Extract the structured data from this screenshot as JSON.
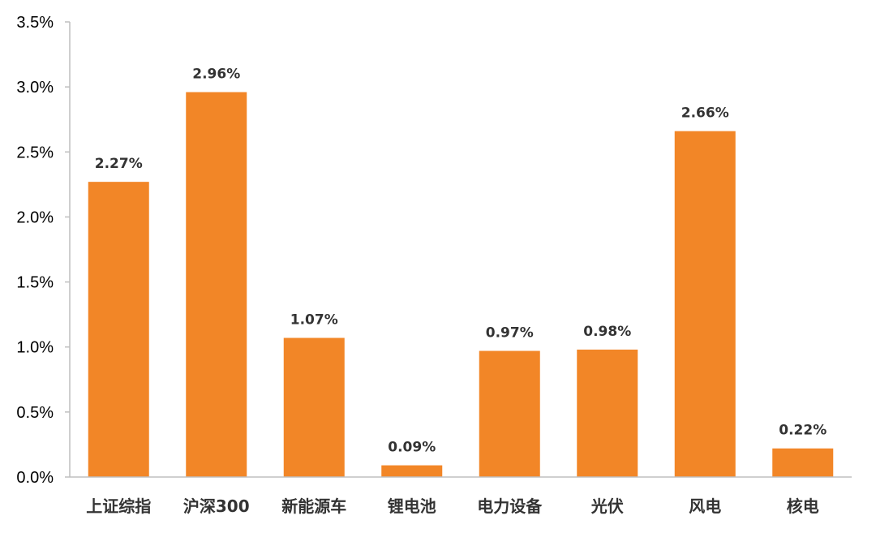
{
  "chart_data": {
    "type": "bar",
    "categories": [
      "上证综指",
      "沪深300",
      "新能源车",
      "锂电池",
      "电力设备",
      "光伏",
      "风电",
      "核电"
    ],
    "values": [
      2.27,
      2.96,
      1.07,
      0.09,
      0.97,
      0.98,
      2.66,
      0.22
    ],
    "data_labels": [
      "2.27%",
      "2.96%",
      "1.07%",
      "0.09%",
      "0.97%",
      "0.98%",
      "2.66%",
      "0.22%"
    ],
    "y_ticks": [
      0.0,
      0.5,
      1.0,
      1.5,
      2.0,
      2.5,
      3.0,
      3.5
    ],
    "y_tick_labels": [
      "0.0%",
      "0.5%",
      "1.0%",
      "1.5%",
      "2.0%",
      "2.5%",
      "3.0%",
      "3.5%"
    ],
    "ylim": [
      0,
      3.5
    ],
    "grid": false,
    "legend": "none",
    "bar_color": "#f28627",
    "axis_color": "#bfbfbf"
  }
}
